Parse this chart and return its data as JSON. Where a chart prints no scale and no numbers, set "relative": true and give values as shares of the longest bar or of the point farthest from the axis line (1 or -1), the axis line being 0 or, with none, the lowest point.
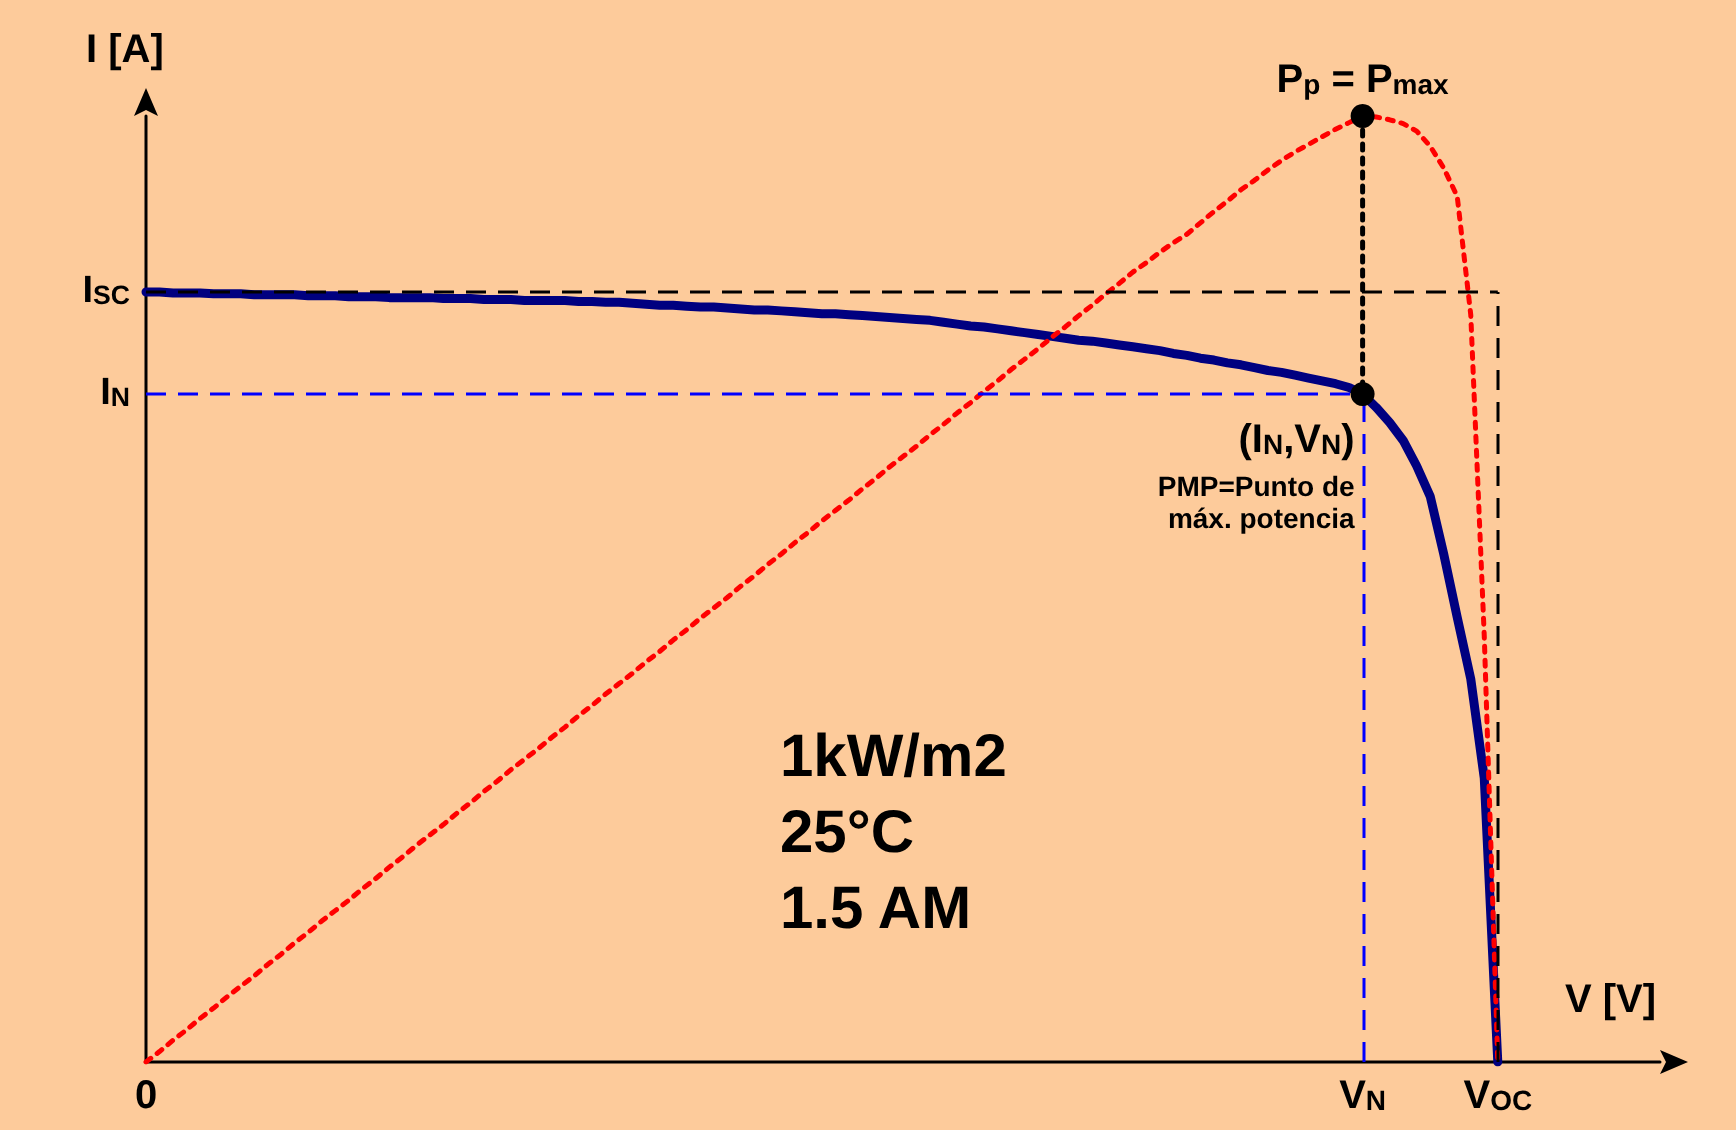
{
  "chart_data": {
    "type": "line",
    "relative": true,
    "xlabel": "V [V]",
    "ylabel": "I [A]",
    "categories": [
      "0",
      null,
      null,
      null,
      null,
      null,
      null,
      null,
      null,
      null,
      null,
      null,
      null,
      null,
      null,
      null,
      null,
      null,
      null,
      null,
      null,
      null,
      null,
      null,
      null,
      null,
      null,
      null,
      null,
      null,
      null,
      null,
      null,
      null,
      null,
      null,
      null,
      null,
      null,
      null,
      null,
      null,
      null,
      null,
      null,
      null,
      null,
      null,
      null,
      null,
      null,
      null,
      null,
      null,
      null,
      null,
      null,
      null,
      null,
      null,
      null,
      null,
      null,
      null,
      null,
      null,
      null,
      null,
      null,
      null,
      null,
      null,
      null,
      null,
      null,
      null,
      null,
      null,
      null,
      null,
      null,
      null,
      null,
      null,
      null,
      null,
      null,
      null,
      null,
      null,
      "V$_{N}$",
      null,
      null,
      null,
      null,
      null,
      null,
      null,
      null,
      null,
      "V$_{OC}$",
      null,
      null,
      null,
      null,
      null,
      null,
      null,
      null,
      null,
      null,
      null,
      null
    ],
    "series": [
      {
        "color": "#000080",
        "line_style": "solid",
        "marker": "none",
        "values": [
          0.814,
          0.814,
          0.813,
          0.813,
          0.813,
          0.812,
          0.812,
          0.812,
          0.811,
          0.811,
          0.811,
          0.811,
          0.81,
          0.81,
          0.81,
          0.809,
          0.809,
          0.809,
          0.808,
          0.808,
          0.808,
          0.808,
          0.807,
          0.807,
          0.807,
          0.806,
          0.806,
          0.806,
          0.805,
          0.805,
          0.805,
          0.805,
          0.804,
          0.804,
          0.803,
          0.803,
          0.802,
          0.801,
          0.8,
          0.8,
          0.799,
          0.798,
          0.798,
          0.797,
          0.796,
          0.795,
          0.795,
          0.794,
          0.793,
          0.792,
          0.791,
          0.791,
          0.79,
          0.789,
          0.788,
          0.787,
          0.786,
          0.785,
          0.784,
          0.782,
          0.78,
          0.778,
          0.777,
          0.775,
          0.773,
          0.771,
          0.769,
          0.767,
          0.765,
          0.763,
          0.762,
          0.76,
          0.758,
          0.756,
          0.754,
          0.752,
          0.749,
          0.747,
          0.744,
          0.742,
          0.739,
          0.737,
          0.734,
          0.731,
          0.729,
          0.726,
          0.723,
          0.72,
          0.717,
          0.713,
          0.706,
          0.692,
          0.676,
          0.657,
          0.63,
          0.598,
          0.537,
          0.47,
          0.405,
          0.3,
          0,
          null,
          null,
          null,
          null,
          null,
          null,
          null,
          null,
          null,
          null,
          null,
          null
        ]
      },
      {
        "color": "#ff0000",
        "line_style": "dotted",
        "marker": "none",
        "values": [
          0,
          0.011,
          0.023,
          0.034,
          0.046,
          0.057,
          0.069,
          0.08,
          0.091,
          0.103,
          0.114,
          0.126,
          0.137,
          0.149,
          0.16,
          0.171,
          0.183,
          0.194,
          0.206,
          0.217,
          0.229,
          0.24,
          0.251,
          0.263,
          0.274,
          0.286,
          0.297,
          0.309,
          0.32,
          0.331,
          0.343,
          0.354,
          0.366,
          0.377,
          0.389,
          0.4,
          0.411,
          0.423,
          0.434,
          0.446,
          0.457,
          0.469,
          0.48,
          0.491,
          0.503,
          0.514,
          0.526,
          0.537,
          0.549,
          0.56,
          0.572,
          0.583,
          0.594,
          0.606,
          0.617,
          0.629,
          0.64,
          0.651,
          0.663,
          0.674,
          0.686,
          0.697,
          0.709,
          0.72,
          0.732,
          0.743,
          0.754,
          0.766,
          0.777,
          0.789,
          0.8,
          0.812,
          0.823,
          0.835,
          0.845,
          0.856,
          0.866,
          0.875,
          0.887,
          0.899,
          0.91,
          0.922,
          0.932,
          0.943,
          0.953,
          0.962,
          0.97,
          0.978,
          0.986,
          0.993,
          1,
          0.999,
          0.996,
          0.992,
          0.984,
          0.968,
          0.945,
          0.915,
          0.79,
          0.45,
          0,
          null,
          null,
          null,
          null,
          null,
          null,
          null,
          null,
          null,
          null,
          null,
          null
        ]
      },
      {
        "color": "#000000",
        "line_style": "dotted",
        "marker": "circle",
        "x": [
          "V$_{N}$",
          "V$_{N}$"
        ],
        "values": [
          1,
          0.706
        ]
      }
    ],
    "ref_lines": [
      {
        "axis": "y",
        "value": 0.814,
        "label": "I$_{SC}$",
        "color": "#000000",
        "line_style": "dashed"
      },
      {
        "axis": "x",
        "value": "V$_{OC}$",
        "color": "#000000",
        "line_style": "dashed"
      },
      {
        "axis": "y",
        "value": 0.706,
        "label": "I$_{N}$",
        "color": "#0000ff",
        "line_style": "dashed"
      },
      {
        "axis": "x",
        "value": "V$_{N}$",
        "color": "#0000ff",
        "line_style": "dashed"
      }
    ],
    "annotations": [
      {
        "text": "P$_{p}$ = P$_{max}$",
        "x": "V$_{N}$",
        "y": 1
      },
      {
        "text": "(I$_{N}$,V$_{N}$)",
        "x": "V$_{N}$",
        "y": 0.706
      },
      {
        "text": "PMP=Punto de\nmáx. potencia",
        "x": "V$_{N}$",
        "y": 0.706
      },
      "1kW/m2",
      "25°C",
      "1.5 AM"
    ]
  }
}
